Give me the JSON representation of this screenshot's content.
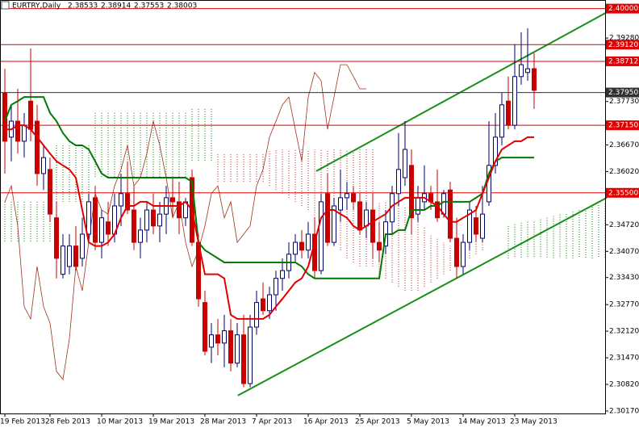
{
  "chart_data": {
    "type": "candlestick",
    "title": "EURTRY,Daily",
    "header_ohlc": [
      2.38533,
      2.38914,
      2.37553,
      2.38003
    ],
    "categories": [
      "19 Feb 2013",
      null,
      null,
      null,
      null,
      null,
      null,
      "28 Feb 2013",
      null,
      null,
      null,
      null,
      null,
      null,
      null,
      "10 Mar 2013",
      null,
      null,
      null,
      null,
      null,
      null,
      null,
      "19 Mar 2013",
      null,
      null,
      null,
      null,
      null,
      null,
      null,
      "28 Mar 2013",
      null,
      null,
      null,
      null,
      null,
      null,
      null,
      "7 Apr 2013",
      null,
      null,
      null,
      null,
      null,
      null,
      null,
      "16 Apr 2013",
      null,
      null,
      null,
      null,
      null,
      null,
      null,
      "25 Apr 2013",
      null,
      null,
      null,
      null,
      null,
      null,
      null,
      "5 May 2013",
      null,
      null,
      null,
      null,
      null,
      null,
      null,
      "14 May 2013",
      null,
      null,
      null,
      null,
      null,
      null,
      null,
      "23 May 2013",
      null,
      null,
      null,
      null,
      null,
      null,
      null,
      null,
      null,
      null,
      null,
      null,
      null,
      null
    ],
    "open": [
      2.3794,
      2.3686,
      2.3725,
      2.3676,
      2.3774,
      2.3725,
      2.3597,
      2.3607,
      2.3489,
      2.3351,
      2.337,
      2.342,
      2.339,
      2.3449,
      2.3538,
      2.3429,
      2.3479,
      2.3449,
      2.3518,
      2.3548,
      2.3508,
      2.3429,
      2.3459,
      2.3508,
      2.3469,
      2.3498,
      2.3538,
      2.3528,
      2.3489,
      2.3587,
      2.3429,
      2.3282,
      2.3173,
      2.3203,
      2.3183,
      2.3213,
      2.3134,
      2.3203,
      2.3084,
      2.3222,
      2.3291,
      2.3262,
      2.3301,
      2.3341,
      2.336,
      2.34,
      2.3429,
      2.341,
      2.3449,
      2.336,
      2.3548,
      2.3429,
      2.3508,
      2.3538,
      2.3548,
      2.3528,
      2.3469,
      2.3508,
      2.3429,
      2.342,
      2.3479,
      2.3548,
      2.3587,
      2.3617,
      2.3498,
      2.3528,
      2.3548,
      2.3528,
      2.3498,
      2.3557,
      2.3439,
      2.337,
      2.3429,
      2.3489,
      2.3439,
      2.3528,
      2.3617,
      2.3686,
      2.3774,
      2.3715,
      2.3834,
      2.3844,
      2.38533,
      null,
      null,
      null,
      null,
      null,
      null,
      null,
      null,
      null,
      null,
      null
    ],
    "high": [
      2.3853,
      2.3765,
      2.3804,
      2.3745,
      2.3903,
      2.3765,
      2.3666,
      2.3636,
      2.3528,
      2.3449,
      2.3449,
      2.3469,
      2.3489,
      2.3548,
      2.3567,
      2.3508,
      2.3528,
      2.3548,
      2.3597,
      2.3627,
      2.3567,
      2.3489,
      2.3528,
      2.3548,
      2.3528,
      2.3567,
      2.3587,
      2.3577,
      2.3538,
      2.3607,
      2.3449,
      2.3311,
      2.3232,
      2.3242,
      2.3252,
      2.3242,
      2.3232,
      2.3252,
      2.3252,
      2.3311,
      2.3331,
      2.3321,
      2.336,
      2.339,
      2.3429,
      2.3449,
      2.3459,
      2.3479,
      2.3489,
      2.3548,
      2.3597,
      2.3538,
      2.3607,
      2.3577,
      2.3567,
      2.3548,
      2.3528,
      2.3548,
      2.3479,
      2.3508,
      2.3567,
      2.3696,
      2.3725,
      2.3656,
      2.3567,
      2.3617,
      2.3567,
      2.3607,
      2.3557,
      2.3577,
      2.3489,
      2.3449,
      2.3528,
      2.3518,
      2.3567,
      2.3725,
      2.3745,
      2.3794,
      2.3834,
      2.3913,
      2.3942,
      2.3952,
      2.38914,
      null,
      null,
      null,
      null,
      null,
      null,
      null,
      null,
      null,
      null,
      null
    ],
    "low": [
      2.3597,
      2.3627,
      2.3646,
      2.3636,
      2.3676,
      2.3567,
      2.3557,
      2.3479,
      2.3341,
      2.3341,
      2.3351,
      2.336,
      2.337,
      2.3429,
      2.341,
      2.339,
      2.342,
      2.3429,
      2.3469,
      2.3498,
      2.341,
      2.339,
      2.3429,
      2.3449,
      2.3429,
      2.3449,
      2.3489,
      2.3449,
      2.3469,
      2.342,
      2.3272,
      2.3153,
      2.3134,
      2.3153,
      2.3124,
      2.3114,
      2.3124,
      2.3075,
      2.3075,
      2.3203,
      2.3252,
      2.3242,
      2.3262,
      2.3311,
      2.3341,
      2.338,
      2.339,
      2.339,
      2.3341,
      2.3351,
      2.342,
      2.342,
      2.3479,
      2.3508,
      2.3508,
      2.3449,
      2.3439,
      2.339,
      2.338,
      2.34,
      2.3449,
      2.3518,
      2.3567,
      2.3449,
      2.3479,
      2.3508,
      2.3508,
      2.3479,
      2.3489,
      2.3429,
      2.3341,
      2.3351,
      2.341,
      2.3429,
      2.3429,
      2.3518,
      2.3597,
      2.3666,
      2.3705,
      2.3705,
      2.3814,
      2.3824,
      2.37553,
      null,
      null,
      null,
      null,
      null,
      null,
      null,
      null,
      null,
      null,
      null
    ],
    "close": [
      2.3676,
      2.3725,
      2.3676,
      2.3715,
      2.3705,
      2.3597,
      2.3636,
      2.3498,
      2.339,
      2.342,
      2.342,
      2.337,
      2.3449,
      2.3528,
      2.3429,
      2.3489,
      2.3449,
      2.3518,
      2.3548,
      2.3508,
      2.3429,
      2.3459,
      2.3508,
      2.3469,
      2.3498,
      2.3538,
      2.3528,
      2.3489,
      2.3528,
      2.3429,
      2.3291,
      2.3163,
      2.3203,
      2.3183,
      2.3213,
      2.3134,
      2.3203,
      2.3084,
      2.3222,
      2.3282,
      2.3262,
      2.3301,
      2.3341,
      2.336,
      2.34,
      2.3429,
      2.341,
      2.3449,
      2.336,
      2.3528,
      2.3429,
      2.3518,
      2.3538,
      2.3548,
      2.3528,
      2.3459,
      2.3508,
      2.3429,
      2.341,
      2.3479,
      2.3548,
      2.3607,
      2.3656,
      2.3489,
      2.3538,
      2.3548,
      2.3528,
      2.3489,
      2.3548,
      2.3439,
      2.337,
      2.3429,
      2.3508,
      2.3449,
      2.3498,
      2.3617,
      2.3686,
      2.3765,
      2.3715,
      2.3834,
      2.3863,
      2.3853,
      2.38003,
      null,
      null,
      null,
      null,
      null,
      null,
      null,
      null,
      null,
      null,
      null
    ],
    "tenkan": [
      2.3705,
      2.3705,
      2.3715,
      2.3715,
      2.3705,
      2.3686,
      2.3666,
      2.3646,
      2.3627,
      2.3617,
      2.3607,
      2.3587,
      2.3508,
      2.3429,
      2.342,
      2.342,
      2.3429,
      2.3449,
      2.3489,
      2.3518,
      2.3518,
      2.3528,
      2.3528,
      2.3518,
      2.3518,
      2.3518,
      2.3518,
      2.3518,
      2.3528,
      2.3508,
      2.3429,
      2.3351,
      2.3351,
      2.3351,
      2.3341,
      2.3252,
      2.3242,
      2.3242,
      2.3242,
      2.3242,
      2.3242,
      2.3252,
      2.3272,
      2.3291,
      2.3311,
      2.3331,
      2.3341,
      2.337,
      2.3429,
      2.3489,
      2.3508,
      2.3508,
      2.3498,
      2.3489,
      2.3469,
      2.3459,
      2.3469,
      2.3479,
      2.3489,
      2.3498,
      2.3518,
      2.3528,
      2.3538,
      2.3538,
      2.3538,
      2.3538,
      2.3528,
      2.3518,
      2.3498,
      2.3479,
      2.3479,
      2.3489,
      2.3498,
      2.3508,
      2.3548,
      2.3587,
      2.3627,
      2.3656,
      2.3666,
      2.3676,
      2.3676,
      2.3686,
      2.3686,
      null,
      null,
      null,
      null,
      null,
      null,
      null,
      null,
      null,
      null,
      null
    ],
    "kijun": [
      2.3725,
      2.3765,
      2.3774,
      2.3784,
      2.3784,
      2.3784,
      2.3784,
      2.3745,
      2.3725,
      2.3696,
      2.3676,
      2.3666,
      2.3666,
      2.3656,
      2.3627,
      2.3597,
      2.3587,
      2.3587,
      2.3587,
      2.3587,
      2.3587,
      2.3587,
      2.3587,
      2.3587,
      2.3587,
      2.3587,
      2.3587,
      2.3587,
      2.3587,
      2.3577,
      2.3429,
      2.341,
      2.34,
      2.339,
      2.338,
      2.338,
      2.338,
      2.338,
      2.338,
      2.338,
      2.338,
      2.338,
      2.338,
      2.338,
      2.338,
      2.338,
      2.337,
      2.3351,
      2.3341,
      2.3341,
      2.3341,
      2.3341,
      2.3341,
      2.3341,
      2.3341,
      2.3341,
      2.3341,
      2.3341,
      2.3341,
      2.3449,
      2.3449,
      2.3459,
      2.3459,
      2.3508,
      2.3508,
      2.3508,
      2.3518,
      2.3518,
      2.3528,
      2.3528,
      2.3528,
      2.3528,
      2.3528,
      2.3538,
      2.3548,
      2.3597,
      2.3627,
      2.3636,
      2.3636,
      2.3636,
      2.3636,
      2.3636,
      2.3636,
      null,
      null,
      null,
      null,
      null,
      null,
      null,
      null,
      null,
      null,
      null
    ],
    "chikou": [
      2.3528,
      2.3567,
      2.3469,
      2.3272,
      2.3242,
      2.337,
      2.3272,
      2.3232,
      2.3114,
      2.3094,
      2.3193,
      2.337,
      2.3311,
      2.3429,
      2.3548,
      2.3508,
      2.3498,
      2.3567,
      2.3607,
      2.3666,
      2.3567,
      2.3587,
      2.3646,
      2.3725,
      2.3666,
      2.3587,
      2.3489,
      2.3528,
      2.3429,
      2.337,
      2.341,
      2.3469,
      2.3548,
      2.3567,
      2.3489,
      2.3528,
      2.3429,
      2.3449,
      2.3469,
      2.3567,
      2.3607,
      2.3686,
      2.3725,
      2.3765,
      2.3784,
      2.3705,
      2.3627,
      2.3784,
      2.3844,
      2.3824,
      2.3705,
      2.3784,
      2.3863,
      2.3863,
      2.3834,
      2.3804,
      2.3804,
      null,
      null,
      null,
      null,
      null,
      null,
      null,
      null,
      null,
      null,
      null,
      null,
      null,
      null,
      null,
      null,
      null,
      null,
      null,
      null,
      null,
      null,
      null,
      null,
      null,
      null,
      null,
      null,
      null,
      null,
      null,
      null,
      null,
      null,
      null,
      null,
      null
    ],
    "senkou_a": [
      2.3528,
      2.3528,
      2.3528,
      2.3528,
      2.3528,
      2.3528,
      2.3528,
      2.3528,
      2.3666,
      2.3666,
      2.3666,
      2.3666,
      2.3666,
      2.3666,
      2.3745,
      2.3745,
      2.3745,
      2.3745,
      2.3745,
      2.3745,
      2.3745,
      2.3745,
      2.3745,
      2.3745,
      2.3745,
      2.3745,
      2.3745,
      2.3745,
      2.3745,
      2.3755,
      2.3755,
      2.3755,
      2.3755,
      2.3577,
      2.3577,
      2.3577,
      2.3577,
      2.3577,
      2.3577,
      2.3577,
      2.3577,
      2.3567,
      2.3557,
      2.3548,
      2.3538,
      2.3528,
      2.3518,
      2.3508,
      2.3489,
      2.3469,
      2.3449,
      2.3429,
      2.341,
      2.339,
      2.338,
      2.337,
      2.337,
      2.337,
      2.3351,
      2.3341,
      2.3331,
      2.3321,
      2.3311,
      2.3311,
      2.3311,
      2.3321,
      2.3331,
      2.3341,
      2.3351,
      2.336,
      2.337,
      2.339,
      2.339,
      2.34,
      2.341,
      2.3429,
      2.3439,
      2.3449,
      2.3469,
      2.3473,
      2.3477,
      2.3479,
      2.3479,
      2.3485,
      2.3489,
      2.3493,
      2.3497,
      2.3498,
      2.3504,
      2.3508,
      2.3512,
      2.3516,
      2.352,
      2.3524
    ],
    "senkou_b": [
      2.3429,
      2.3429,
      2.3429,
      2.3429,
      2.3429,
      2.3429,
      2.3429,
      2.3429,
      2.3528,
      2.3528,
      2.3528,
      2.3528,
      2.3528,
      2.3528,
      2.3587,
      2.3587,
      2.3587,
      2.3587,
      2.3587,
      2.3587,
      2.3587,
      2.3587,
      2.3587,
      2.3587,
      2.3587,
      2.3587,
      2.3587,
      2.3587,
      2.3587,
      2.3627,
      2.3627,
      2.3627,
      2.3627,
      2.3646,
      2.3646,
      2.3646,
      2.3646,
      2.3646,
      2.3646,
      2.3646,
      2.3646,
      2.3656,
      2.3656,
      2.3656,
      2.3656,
      2.3656,
      2.3656,
      2.3656,
      2.3656,
      2.3656,
      2.3656,
      2.3656,
      2.3656,
      2.3656,
      2.3656,
      2.3656,
      2.3656,
      2.3656,
      2.3528,
      2.3528,
      2.3528,
      2.3518,
      2.3518,
      2.3508,
      2.3489,
      2.3469,
      2.3449,
      2.3439,
      2.3429,
      2.342,
      2.341,
      2.342,
      2.342,
      2.3429,
      2.3429,
      2.3429,
      2.3439,
      2.3449,
      2.339,
      2.339,
      2.339,
      2.339,
      2.339,
      2.339,
      2.339,
      2.339,
      2.339,
      2.339,
      2.339,
      2.339,
      2.339,
      2.339,
      2.339,
      2.339
    ],
    "trendlines": [
      {
        "x": [
          48.25,
          93.25
        ],
        "values": [
          2.3603,
          2.3991
        ]
      },
      {
        "x": [
          36.1,
          93.25
        ],
        "values": [
          2.3055,
          2.3538
        ]
      }
    ],
    "levels": [
      {
        "value": 2.4,
        "label": "2.40000",
        "color": "#e00000"
      },
      {
        "value": 2.3912,
        "label": "2.39120",
        "color": "#e00000"
      },
      {
        "value": 2.38712,
        "label": "2.38712",
        "color": "#e00000"
      },
      {
        "value": 2.3795,
        "label": "2.37950",
        "color": "#303030"
      },
      {
        "value": 2.3715,
        "label": "2.37150",
        "color": "#e00000"
      },
      {
        "value": 2.355,
        "label": "2.35500",
        "color": "#e00000"
      }
    ],
    "ylim": [
      2.3011,
      2.4021
    ],
    "yticks": [
      {
        "value": 2.3928,
        "label": "2.39280"
      },
      {
        "value": 2.3773,
        "label": "2.37730"
      },
      {
        "value": 2.3667,
        "label": "2.36670"
      },
      {
        "value": 2.3602,
        "label": "2.36020"
      },
      {
        "value": 2.3472,
        "label": "2.34720"
      },
      {
        "value": 2.3407,
        "label": "2.34070"
      },
      {
        "value": 2.3343,
        "label": "2.33430"
      },
      {
        "value": 2.3277,
        "label": "2.32770"
      },
      {
        "value": 2.3212,
        "label": "2.32120"
      },
      {
        "value": 2.3147,
        "label": "2.31470"
      },
      {
        "value": 2.3082,
        "label": "2.30820"
      },
      {
        "value": 2.3017,
        "label": "2.30170"
      }
    ],
    "up_color": "#00006e",
    "down_color": "#c80000",
    "tenkan_color": "#e00000",
    "kijun_color": "#007a00",
    "chikou_color": "#a0301c",
    "cloud_up_color": "#008000",
    "cloud_down_color": "#b22222",
    "trend_color": "#159015"
  }
}
